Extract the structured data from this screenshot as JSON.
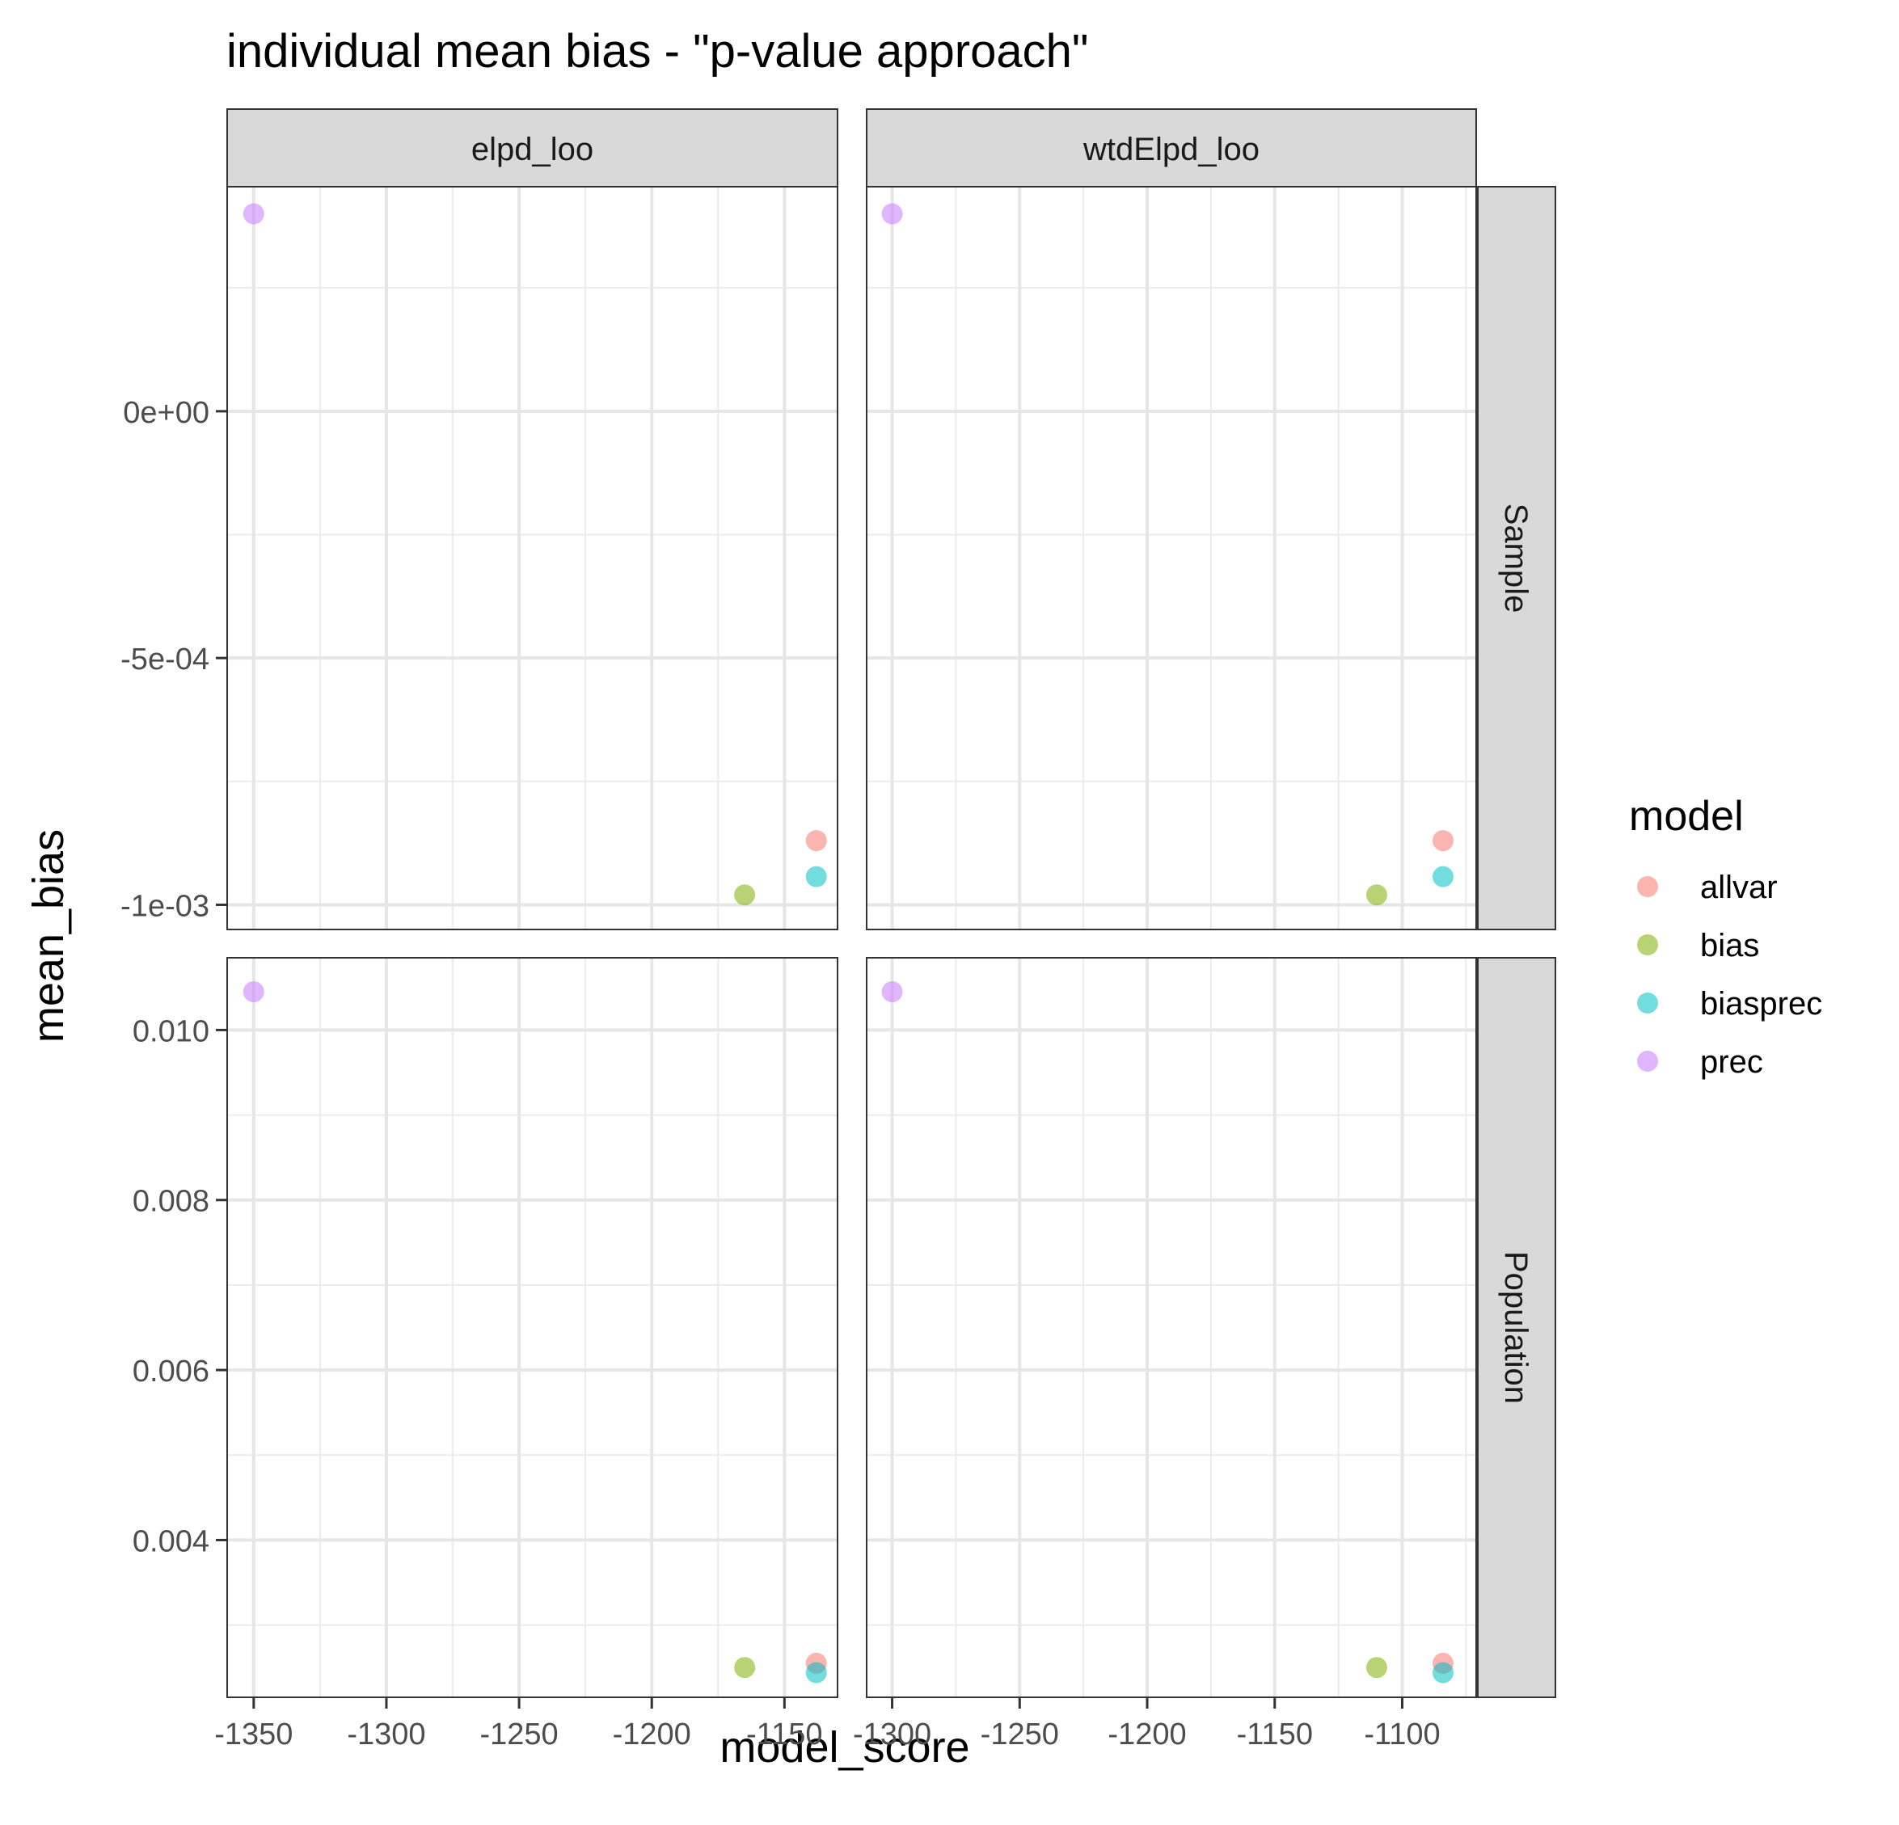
{
  "chart_data": {
    "type": "scatter",
    "title": "individual mean bias - \"p-value approach\"",
    "xlabel": "model_score",
    "ylabel": "mean_bias",
    "legend": {
      "title": "model",
      "position": "right",
      "entries": [
        "allvar",
        "bias",
        "biasprec",
        "prec"
      ]
    },
    "colors": {
      "allvar": "#F8766D",
      "bias": "#7CAE00",
      "biasprec": "#00BFC4",
      "prec": "#C77CFF"
    },
    "grid": true,
    "facet_columns": [
      "elpd_loo",
      "wtdElpd_loo"
    ],
    "facet_rows": [
      "Sample",
      "Population"
    ],
    "x_axes": {
      "elpd_loo": {
        "xlim": [
          -1360,
          -1130
        ],
        "ticks": [
          -1350,
          -1300,
          -1250,
          -1200,
          -1150
        ],
        "tick_labels": [
          "-1350",
          "-1300",
          "-1250",
          "-1200",
          "-1150"
        ]
      },
      "wtdElpd_loo": {
        "xlim": [
          -1310,
          -1071
        ],
        "ticks": [
          -1300,
          -1250,
          -1200,
          -1150,
          -1100
        ],
        "tick_labels": [
          "-1300",
          "-1250",
          "-1200",
          "-1150",
          "-1100"
        ]
      }
    },
    "y_axes": {
      "Sample": {
        "ylim": [
          -0.00105,
          0.000455
        ],
        "ticks": [
          0,
          -0.0005,
          -0.001
        ],
        "tick_labels": [
          "0e+00",
          "-5e-04",
          "-1e-03"
        ]
      },
      "Population": {
        "ylim": [
          0.00215,
          0.01085
        ],
        "ticks": [
          0.01,
          0.008,
          0.006,
          0.004
        ],
        "tick_labels": [
          "0.010",
          "0.008",
          "0.006",
          "0.004"
        ]
      }
    },
    "panels": [
      {
        "col": "elpd_loo",
        "row": "Sample",
        "points": [
          {
            "model": "prec",
            "x": -1350,
            "y": 0.0004
          },
          {
            "model": "allvar",
            "x": -1138,
            "y": -0.00087
          },
          {
            "model": "biasprec",
            "x": -1138,
            "y": -0.000943
          },
          {
            "model": "bias",
            "x": -1165,
            "y": -0.00098
          }
        ]
      },
      {
        "col": "wtdElpd_loo",
        "row": "Sample",
        "points": [
          {
            "model": "prec",
            "x": -1300,
            "y": 0.0004
          },
          {
            "model": "allvar",
            "x": -1084,
            "y": -0.00087
          },
          {
            "model": "biasprec",
            "x": -1084,
            "y": -0.000943
          },
          {
            "model": "bias",
            "x": -1110,
            "y": -0.00098
          }
        ]
      },
      {
        "col": "elpd_loo",
        "row": "Population",
        "points": [
          {
            "model": "prec",
            "x": -1350,
            "y": 0.01045
          },
          {
            "model": "allvar",
            "x": -1138,
            "y": 0.00255
          },
          {
            "model": "bias",
            "x": -1165,
            "y": 0.0025
          },
          {
            "model": "biasprec",
            "x": -1138,
            "y": 0.00244
          }
        ]
      },
      {
        "col": "wtdElpd_loo",
        "row": "Population",
        "points": [
          {
            "model": "prec",
            "x": -1300,
            "y": 0.01045
          },
          {
            "model": "allvar",
            "x": -1084,
            "y": 0.00255
          },
          {
            "model": "bias",
            "x": -1110,
            "y": 0.0025
          },
          {
            "model": "biasprec",
            "x": -1084,
            "y": 0.00244
          }
        ]
      }
    ]
  }
}
